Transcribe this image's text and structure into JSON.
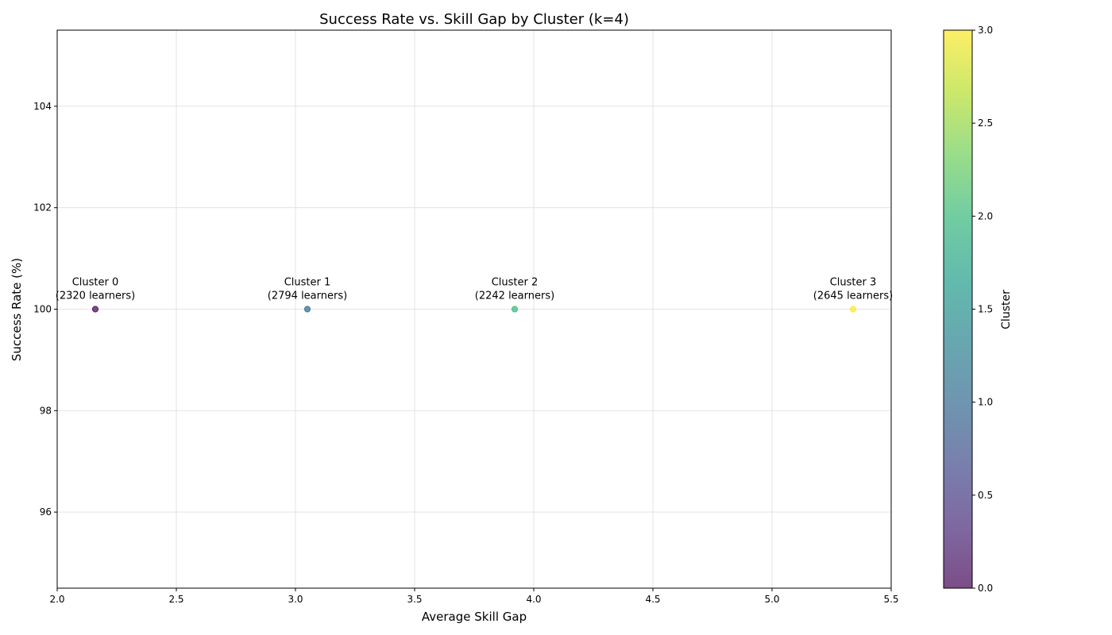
{
  "chart_data": {
    "type": "scatter",
    "title": "Success Rate vs. Skill Gap by Cluster (k=4)",
    "xlabel": "Average Skill Gap",
    "ylabel": "Success Rate (%)",
    "xlim": [
      2.0,
      5.5
    ],
    "ylim": [
      94.5,
      105.5
    ],
    "xticks": [
      2.0,
      2.5,
      3.0,
      3.5,
      4.0,
      4.5,
      5.0,
      5.5
    ],
    "xtick_labels": [
      "2.0",
      "2.5",
      "3.0",
      "3.5",
      "4.0",
      "4.5",
      "5.0",
      "5.5"
    ],
    "yticks": [
      96,
      98,
      100,
      102,
      104
    ],
    "ytick_labels": [
      "96",
      "98",
      "100",
      "102",
      "104"
    ],
    "grid": true,
    "points": [
      {
        "cluster": 0,
        "x": 2.16,
        "y": 100,
        "label_line1": "Cluster 0",
        "label_line2": "(2320 learners)",
        "color": "#440154"
      },
      {
        "cluster": 1,
        "x": 3.05,
        "y": 100,
        "label_line1": "Cluster 1",
        "label_line2": "(2794 learners)",
        "color": "#31688e"
      },
      {
        "cluster": 2,
        "x": 3.92,
        "y": 100,
        "label_line1": "Cluster 2",
        "label_line2": "(2242 learners)",
        "color": "#35b779"
      },
      {
        "cluster": 3,
        "x": 5.34,
        "y": 100,
        "label_line1": "Cluster 3",
        "label_line2": "(2645 learners)",
        "color": "#fde725"
      }
    ],
    "colorbar": {
      "label": "Cluster",
      "range": [
        0.0,
        3.0
      ],
      "ticks": [
        0.0,
        0.5,
        1.0,
        1.5,
        2.0,
        2.5,
        3.0
      ],
      "tick_labels": [
        "0.0",
        "0.5",
        "1.0",
        "1.5",
        "2.0",
        "2.5",
        "3.0"
      ],
      "colormap": [
        "#440154",
        "#482878",
        "#3e4989",
        "#31688e",
        "#26828e",
        "#1f9e89",
        "#35b779",
        "#6ece58",
        "#b5de2b",
        "#fde725"
      ],
      "alpha": 0.7
    }
  }
}
